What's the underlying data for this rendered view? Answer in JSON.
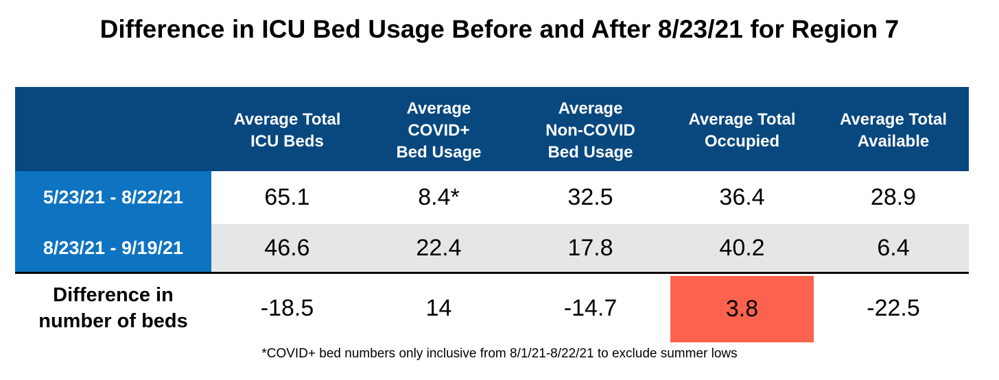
{
  "title": "Difference in ICU Bed Usage Before and After 8/23/21 for Region 7",
  "chart_data": {
    "type": "table",
    "title": "Difference in ICU Bed Usage Before and After 8/23/21 for Region 7",
    "columns": [
      "",
      "Average Total\nICU Beds",
      "Average\nCOVID+\nBed Usage",
      "Average\nNon-COVID\nBed Usage",
      "Average Total\nOccupied",
      "Average Total\nAvailable"
    ],
    "rows": [
      {
        "label": "5/23/21 - 8/22/21",
        "values": [
          "65.1",
          "8.4*",
          "32.5",
          "36.4",
          "28.9"
        ]
      },
      {
        "label": "8/23/21 - 9/19/21",
        "values": [
          "46.6",
          "22.4",
          "17.8",
          "40.2",
          "6.4"
        ]
      },
      {
        "label": "Difference in\nnumber of beds",
        "values": [
          "-18.5",
          "14",
          "-14.7",
          "3.8",
          "-22.5"
        ]
      }
    ],
    "highlight": {
      "row": 2,
      "column": 3,
      "color": "#fb634e"
    },
    "colors": {
      "header": "#08487f",
      "row_label": "#0e73c0",
      "alt_row": "#e5e6e8"
    }
  },
  "footnote": "*COVID+ bed numbers only inclusive from 8/1/21-8/22/21 to exclude summer lows"
}
